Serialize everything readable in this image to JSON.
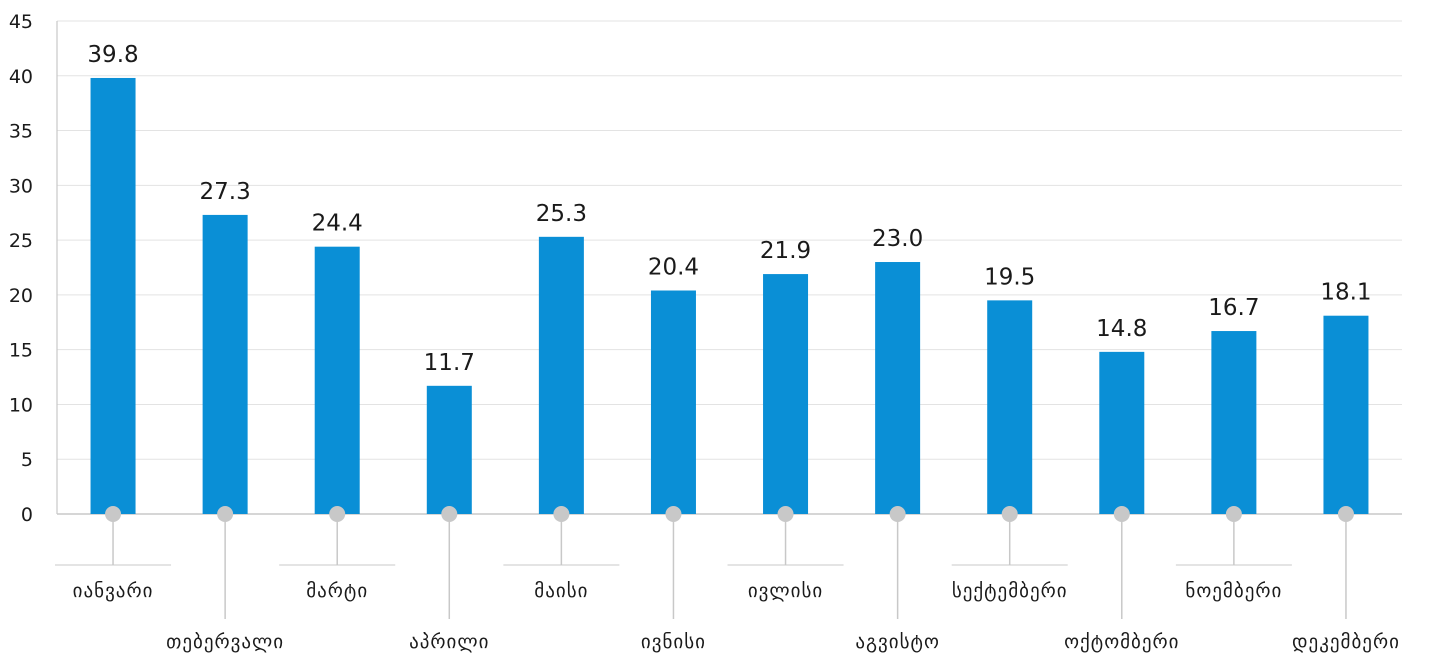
{
  "chart_data": {
    "type": "bar",
    "categories": [
      "იანვარი",
      "თებერვალი",
      "მარტი",
      "აპრილი",
      "მაისი",
      "ივნისი",
      "ივლისი",
      "აგვისტო",
      "სექტემბერი",
      "ოქტომბერი",
      "ნოემბერი",
      "დეკემბერი"
    ],
    "values": [
      39.8,
      27.3,
      24.4,
      11.7,
      25.3,
      20.4,
      21.9,
      23.0,
      19.5,
      14.8,
      16.7,
      18.1
    ],
    "value_labels": [
      "39.8",
      "27.3",
      "24.4",
      "11.7",
      "25.3",
      "20.4",
      "21.9",
      "23.0",
      "19.5",
      "14.8",
      "16.7",
      "18.1"
    ],
    "yticks": [
      "0",
      "5",
      "10",
      "15",
      "20",
      "25",
      "30",
      "35",
      "40",
      "45"
    ],
    "ylim": [
      0,
      45
    ],
    "grid": true,
    "bar_color": "#0a8fd6",
    "grid_color": "#e3e3e3",
    "marker_color": "#c8c8c8"
  }
}
